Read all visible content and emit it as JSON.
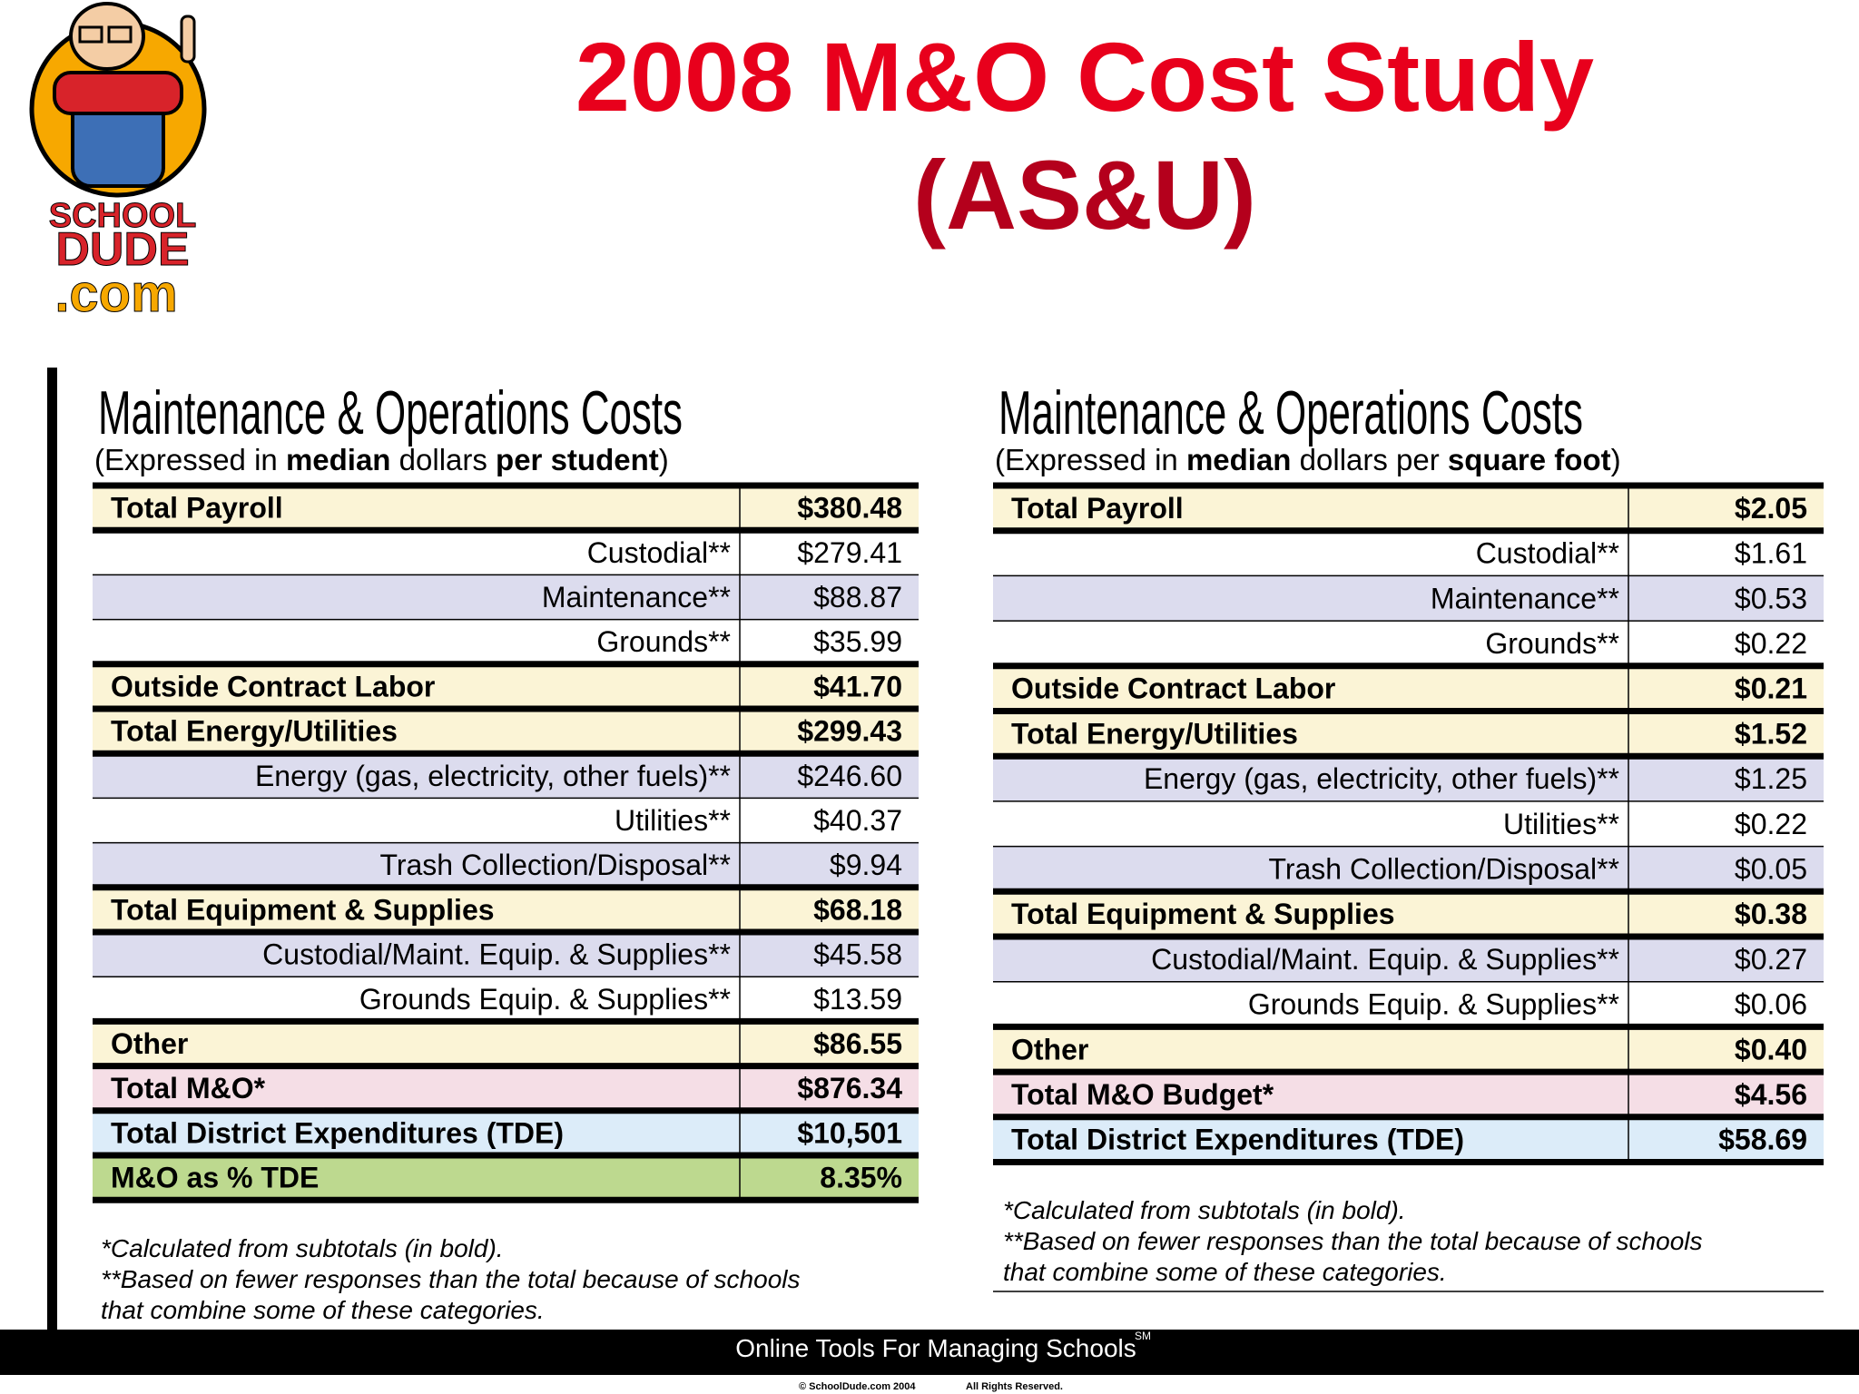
{
  "header": {
    "title_lines": [
      "2008 M&O Cost Study",
      "(AS&U)"
    ]
  },
  "logo": {
    "lines": [
      "SCHOOL",
      "DUDE",
      ".com"
    ]
  },
  "tables": [
    {
      "title": "Maintenance & Operations Costs",
      "subtitle": [
        {
          "text": "(Expressed in "
        },
        {
          "text": "median",
          "bold": true
        },
        {
          "text": " dollars "
        },
        {
          "text": "per student",
          "bold": true
        },
        {
          "text": ")"
        }
      ],
      "rows": [
        {
          "label": "Total Payroll",
          "value": "$380.48",
          "style": "total"
        },
        {
          "label": "Custodial**",
          "value": "$279.41",
          "style": "sub-plain"
        },
        {
          "label": "Maintenance**",
          "value": "$88.87",
          "style": "sub-shaded"
        },
        {
          "label": "Grounds**",
          "value": "$35.99",
          "style": "sub-plain"
        },
        {
          "label": "Outside Contract Labor",
          "value": "$41.70",
          "style": "total"
        },
        {
          "label": "Total Energy/Utilities",
          "value": "$299.43",
          "style": "total"
        },
        {
          "label": "Energy (gas, electricity, other fuels)**",
          "value": "$246.60",
          "style": "sub-shaded"
        },
        {
          "label": "Utilities**",
          "value": "$40.37",
          "style": "sub-plain"
        },
        {
          "label": "Trash Collection/Disposal**",
          "value": "$9.94",
          "style": "sub-shaded"
        },
        {
          "label": "Total Equipment & Supplies",
          "value": "$68.18",
          "style": "total"
        },
        {
          "label": "Custodial/Maint. Equip. & Supplies**",
          "value": "$45.58",
          "style": "sub-shaded"
        },
        {
          "label": "Grounds Equip. & Supplies**",
          "value": "$13.59",
          "style": "sub-plain"
        },
        {
          "label": "Other",
          "value": "$86.55",
          "style": "total"
        },
        {
          "label": "Total M&O*",
          "value": "$876.34",
          "style": "grand"
        },
        {
          "label": "Total District Expenditures (TDE)",
          "value": "$10,501",
          "style": "tde"
        },
        {
          "label": "M&O as % TDE",
          "value": "8.35%",
          "style": "pct"
        }
      ],
      "footnotes": [
        "*Calculated from subtotals (in bold).",
        "**Based on fewer responses than the total because of schools",
        " that combine some of these categories."
      ]
    },
    {
      "title": "Maintenance & Operations Costs",
      "subtitle": [
        {
          "text": "(Expressed in "
        },
        {
          "text": "median",
          "bold": true
        },
        {
          "text": " dollars per "
        },
        {
          "text": "square foot",
          "bold": true
        },
        {
          "text": ")"
        }
      ],
      "rows": [
        {
          "label": "Total Payroll",
          "value": "$2.05",
          "style": "total"
        },
        {
          "label": "Custodial**",
          "value": "$1.61",
          "style": "sub-plain"
        },
        {
          "label": "Maintenance**",
          "value": "$0.53",
          "style": "sub-shaded"
        },
        {
          "label": "Grounds**",
          "value": "$0.22",
          "style": "sub-plain"
        },
        {
          "label": "Outside Contract Labor",
          "value": "$0.21",
          "style": "total"
        },
        {
          "label": "Total Energy/Utilities",
          "value": "$1.52",
          "style": "total"
        },
        {
          "label": "Energy (gas, electricity, other fuels)**",
          "value": "$1.25",
          "style": "sub-shaded"
        },
        {
          "label": "Utilities**",
          "value": "$0.22",
          "style": "sub-plain"
        },
        {
          "label": "Trash Collection/Disposal**",
          "value": "$0.05",
          "style": "sub-shaded"
        },
        {
          "label": "Total Equipment & Supplies",
          "value": "$0.38",
          "style": "total"
        },
        {
          "label": "Custodial/Maint. Equip. & Supplies**",
          "value": "$0.27",
          "style": "sub-shaded"
        },
        {
          "label": "Grounds Equip. & Supplies**",
          "value": "$0.06",
          "style": "sub-plain"
        },
        {
          "label": "Other",
          "value": "$0.40",
          "style": "total"
        },
        {
          "label": "Total M&O Budget*",
          "value": "$4.56",
          "style": "grand"
        },
        {
          "label": "Total District Expenditures (TDE)",
          "value": "$58.69",
          "style": "tde"
        }
      ],
      "footnotes": [
        "*Calculated from subtotals (in bold).",
        "**Based on fewer responses than the total because of schools",
        " that combine some of these categories."
      ]
    }
  ],
  "footer": {
    "tagline": "Online Tools For Managing Schools",
    "mark": "SM",
    "copyright": "© SchoolDude.com 2004",
    "rights": "All Rights Reserved."
  }
}
